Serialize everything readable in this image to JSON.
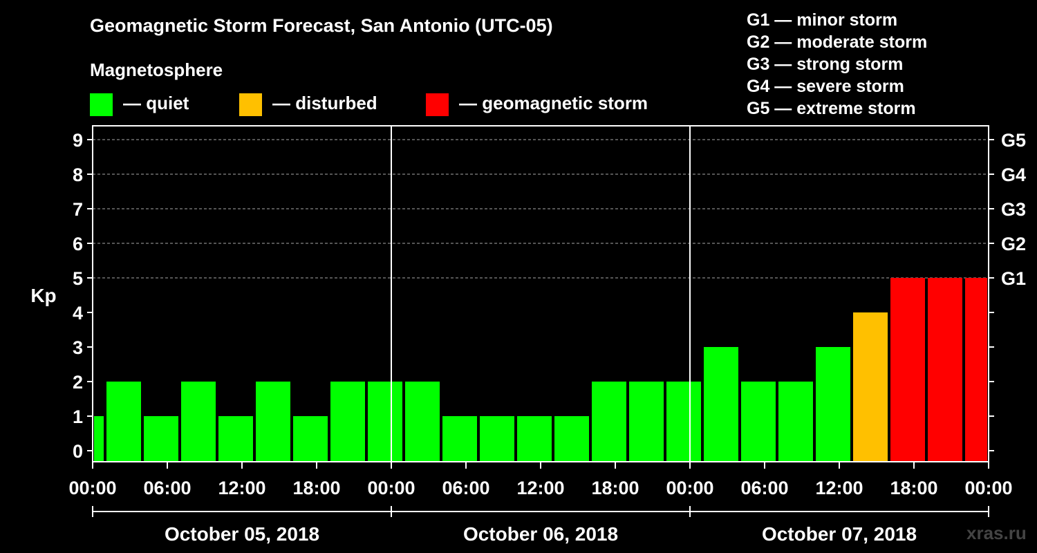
{
  "title": "Geomagnetic Storm Forecast, San Antonio (UTC-05)",
  "magnetosphere_label": "Magnetosphere",
  "legend": [
    {
      "color": "#00ff00",
      "label": "— quiet"
    },
    {
      "color": "#ffc000",
      "label": "— disturbed"
    },
    {
      "color": "#ff0000",
      "label": "— geomagnetic storm"
    }
  ],
  "g_levels": [
    "G1 — minor storm",
    "G2 — moderate storm",
    "G3 — strong storm",
    "G4 — severe storm",
    "G5 — extreme storm"
  ],
  "watermark": "xras.ru",
  "colors": {
    "quiet": "#00ff00",
    "disturbed": "#ffc000",
    "storm": "#ff0000"
  },
  "chart_data": {
    "type": "bar",
    "ylabel": "Kp",
    "ylim": [
      0,
      9
    ],
    "y_ticks": [
      0,
      1,
      2,
      3,
      4,
      5,
      6,
      7,
      8,
      9
    ],
    "right_axis_labels": [
      {
        "kp": 5,
        "label": "G1"
      },
      {
        "kp": 6,
        "label": "G2"
      },
      {
        "kp": 7,
        "label": "G3"
      },
      {
        "kp": 8,
        "label": "G4"
      },
      {
        "kp": 9,
        "label": "G5"
      }
    ],
    "x_range_hours": [
      0,
      72
    ],
    "x_tick_hours": [
      0,
      6,
      12,
      18,
      24,
      30,
      36,
      42,
      48,
      54,
      60,
      66,
      72
    ],
    "x_tick_labels": [
      "00:00",
      "06:00",
      "12:00",
      "18:00",
      "00:00",
      "06:00",
      "12:00",
      "18:00",
      "00:00",
      "06:00",
      "12:00",
      "18:00",
      "00:00"
    ],
    "day_separators_hours": [
      24,
      48
    ],
    "days": [
      "October 05, 2018",
      "October 06, 2018",
      "October 07, 2018"
    ],
    "bars": [
      {
        "start": 0,
        "end": 1,
        "kp": 1
      },
      {
        "start": 1,
        "end": 4,
        "kp": 2
      },
      {
        "start": 4,
        "end": 7,
        "kp": 1
      },
      {
        "start": 7,
        "end": 10,
        "kp": 2
      },
      {
        "start": 10,
        "end": 13,
        "kp": 1
      },
      {
        "start": 13,
        "end": 16,
        "kp": 2
      },
      {
        "start": 16,
        "end": 19,
        "kp": 1
      },
      {
        "start": 19,
        "end": 22,
        "kp": 2
      },
      {
        "start": 22,
        "end": 25,
        "kp": 2
      },
      {
        "start": 25,
        "end": 28,
        "kp": 2
      },
      {
        "start": 28,
        "end": 31,
        "kp": 1
      },
      {
        "start": 31,
        "end": 34,
        "kp": 1
      },
      {
        "start": 34,
        "end": 37,
        "kp": 1
      },
      {
        "start": 37,
        "end": 40,
        "kp": 1
      },
      {
        "start": 40,
        "end": 43,
        "kp": 2
      },
      {
        "start": 43,
        "end": 46,
        "kp": 2
      },
      {
        "start": 46,
        "end": 49,
        "kp": 2
      },
      {
        "start": 49,
        "end": 52,
        "kp": 3
      },
      {
        "start": 52,
        "end": 55,
        "kp": 2
      },
      {
        "start": 55,
        "end": 58,
        "kp": 2
      },
      {
        "start": 58,
        "end": 61,
        "kp": 3
      },
      {
        "start": 61,
        "end": 64,
        "kp": 4
      },
      {
        "start": 64,
        "end": 67,
        "kp": 5
      },
      {
        "start": 67,
        "end": 70,
        "kp": 5
      },
      {
        "start": 70,
        "end": 72,
        "kp": 5
      }
    ]
  }
}
